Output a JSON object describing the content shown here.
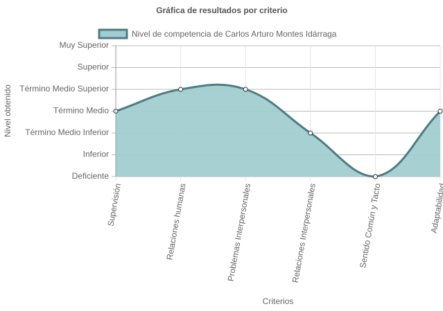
{
  "chart_data": {
    "type": "line",
    "title": "Gráfica de resultados por criterio",
    "x_label": "Criterios",
    "y_label": "Nivel obtenido",
    "categories": [
      "Supervisión",
      "Relaciones humanas",
      "Problemas Interpersonales",
      "Relaciones Interpersonales",
      "Sentido Común y Tacto",
      "Adaptabilidad"
    ],
    "series": [
      {
        "name": "Nivel de competencia de Carlos Arturo Montes Idárraga",
        "color": "#4f7c82",
        "fill": "#a1cdd0",
        "values": [
          3,
          4,
          4,
          2,
          0,
          3
        ]
      }
    ],
    "ylim": [
      0,
      6
    ],
    "yticks": [
      {
        "value": 0,
        "label": "Deficiente"
      },
      {
        "value": 1,
        "label": "Inferior"
      },
      {
        "value": 2,
        "label": "Término Medio Inferior"
      },
      {
        "value": 3,
        "label": "Término Medio"
      },
      {
        "value": 4,
        "label": "Término Medio Superior"
      },
      {
        "value": 5,
        "label": "Superior"
      },
      {
        "value": 6,
        "label": "Muy Superior"
      }
    ],
    "grid": true,
    "smooth": true,
    "legend": "top"
  }
}
